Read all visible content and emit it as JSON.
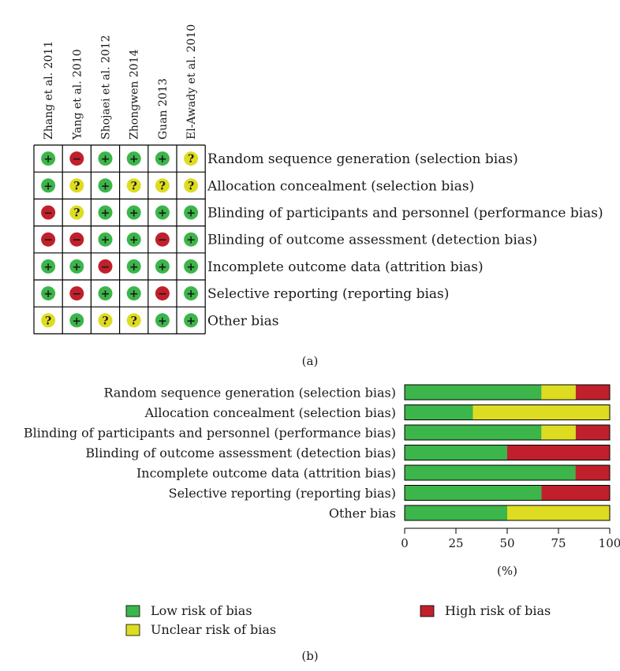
{
  "panel_labels": {
    "a": "(a)",
    "b": "(b)"
  },
  "colors": {
    "low": "#3cb54a",
    "unclear": "#dedc21",
    "high": "#c0202b",
    "grid": "#000000"
  },
  "symbols": {
    "low": "+",
    "unclear": "?",
    "high": "−"
  },
  "chart_data": [
    {
      "type": "table",
      "columns": [
        "Zhang et al. 2011",
        "Yang et al. 2010",
        "Shojaei et al. 2012",
        "Zhongwen 2014",
        "Guan 2013",
        "El-Awady et al. 2010"
      ],
      "rows": [
        "Random sequence generation (selection bias)",
        "Allocation concealment (selection bias)",
        "Blinding of participants and personnel (performance bias)",
        "Blinding of outcome assessment (detection bias)",
        "Incomplete outcome data (attrition bias)",
        "Selective reporting (reporting bias)",
        "Other bias"
      ],
      "cells": [
        [
          "low",
          "high",
          "low",
          "low",
          "low",
          "unclear"
        ],
        [
          "low",
          "unclear",
          "low",
          "unclear",
          "unclear",
          "unclear"
        ],
        [
          "high",
          "unclear",
          "low",
          "low",
          "low",
          "low"
        ],
        [
          "high",
          "high",
          "low",
          "low",
          "high",
          "low"
        ],
        [
          "low",
          "low",
          "high",
          "low",
          "low",
          "low"
        ],
        [
          "low",
          "high",
          "low",
          "low",
          "high",
          "low"
        ],
        [
          "unclear",
          "low",
          "unclear",
          "unclear",
          "low",
          "low"
        ]
      ]
    },
    {
      "type": "bar",
      "stacked": true,
      "orientation": "horizontal",
      "categories": [
        "Random sequence generation (selection bias)",
        "Allocation concealment (selection bias)",
        "Blinding of participants and personnel (performance bias)",
        "Blinding of outcome assessment (detection bias)",
        "Incomplete outcome data (attrition bias)",
        "Selective reporting (reporting bias)",
        "Other bias"
      ],
      "series": [
        {
          "name": "Low risk of bias",
          "key": "low",
          "values": [
            66.7,
            33.3,
            66.7,
            50,
            83.3,
            66.7,
            50
          ]
        },
        {
          "name": "Unclear risk of bias",
          "key": "unclear",
          "values": [
            16.7,
            66.7,
            16.7,
            0,
            0,
            0,
            50
          ]
        },
        {
          "name": "High risk of bias",
          "key": "high",
          "values": [
            16.6,
            0,
            16.6,
            50,
            16.7,
            33.3,
            0
          ]
        }
      ],
      "xlim": [
        0,
        100
      ],
      "xticks": [
        "0",
        "25",
        "50",
        "75",
        "100"
      ],
      "xlabel": "(%)",
      "legend": "bottom"
    }
  ]
}
